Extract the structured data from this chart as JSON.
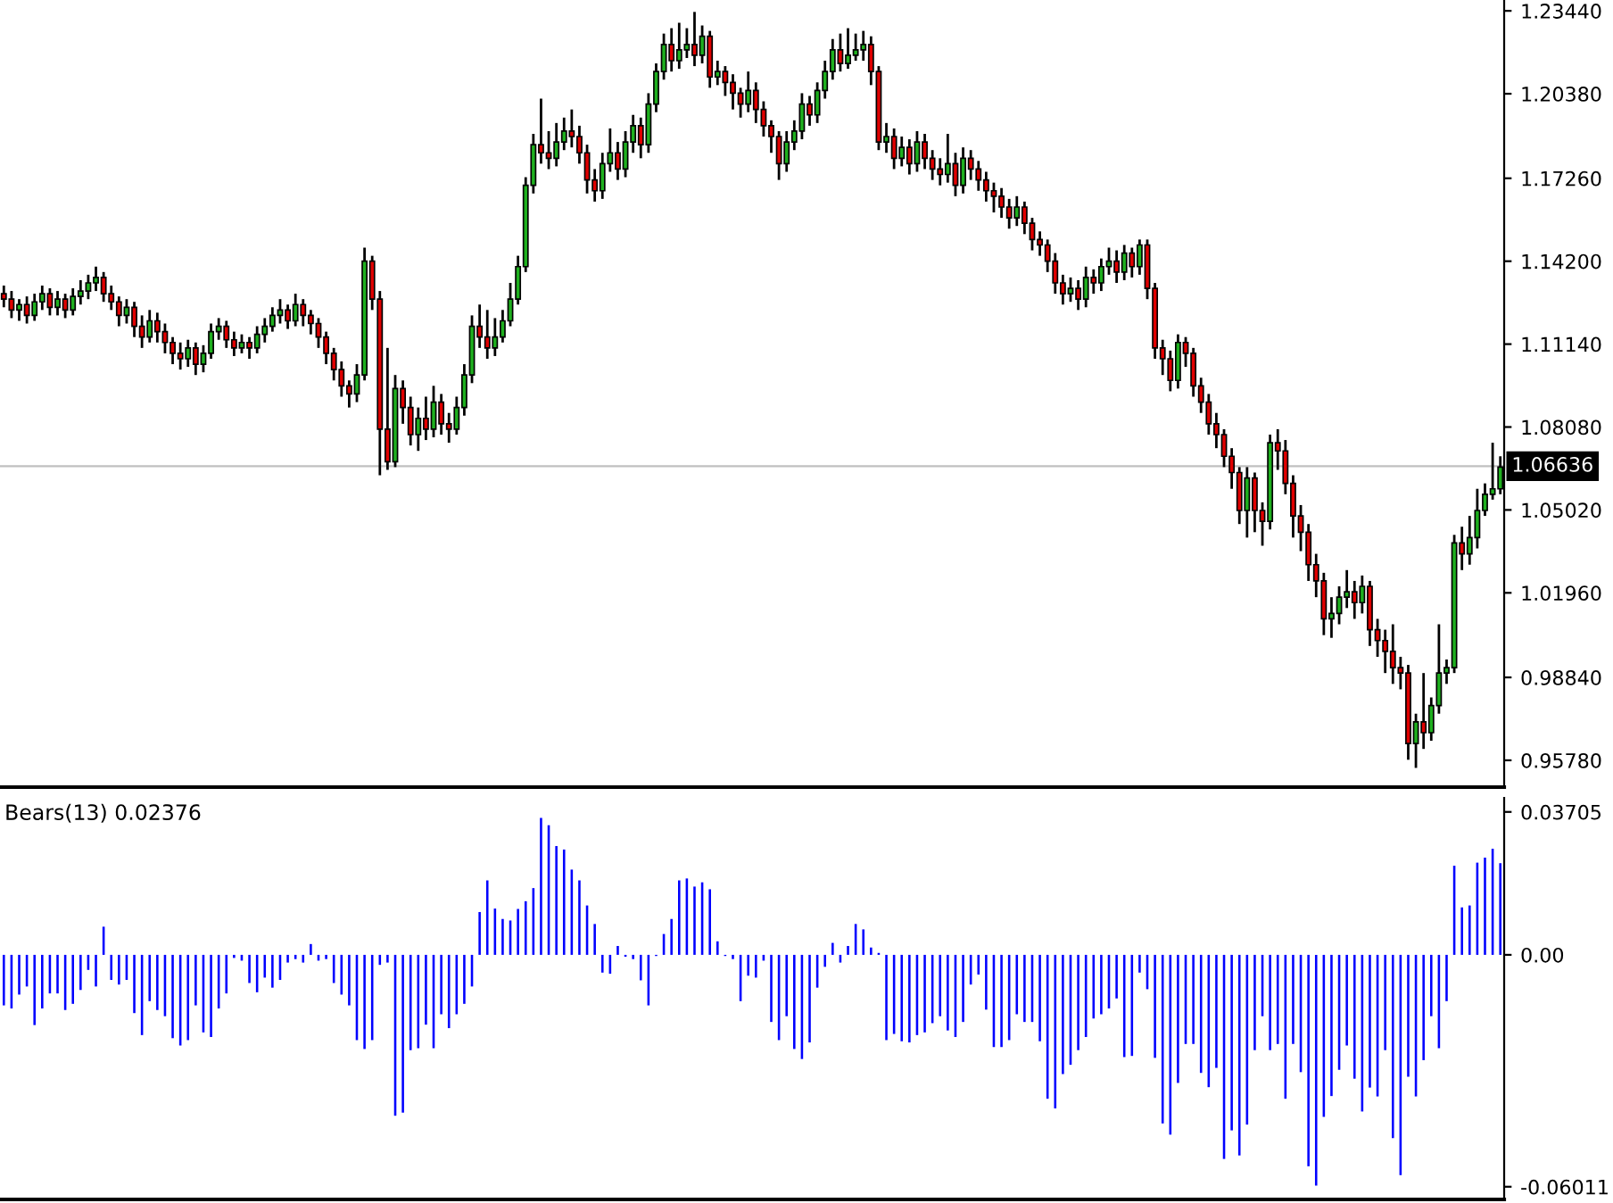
{
  "chart_data": [
    {
      "type": "candlestick",
      "categories": [
        null,
        null,
        null,
        null,
        null,
        null,
        null,
        null,
        null,
        null,
        null,
        null,
        null,
        null,
        null,
        null,
        null,
        null,
        null,
        null,
        null,
        null,
        null,
        null,
        null,
        null,
        null,
        null,
        null,
        null,
        null,
        null,
        null,
        null,
        null,
        null,
        null,
        null,
        null,
        null,
        null,
        null,
        null,
        null,
        null,
        null,
        null,
        null,
        null,
        null,
        null,
        null,
        null,
        null,
        null,
        null,
        null,
        null,
        null,
        null,
        null,
        null,
        null,
        null,
        null,
        null,
        null,
        null,
        null,
        null,
        null,
        null,
        null,
        null,
        null,
        null,
        null,
        null,
        null,
        null,
        null,
        null,
        null,
        null,
        null,
        null,
        null,
        null,
        null,
        null,
        null,
        null,
        null,
        null,
        null,
        null,
        null,
        null,
        null,
        null,
        null,
        null,
        null,
        null,
        null,
        null,
        null,
        null,
        null,
        null,
        null,
        null,
        null,
        null,
        null,
        null,
        null,
        null,
        null,
        null,
        null,
        null,
        null,
        null,
        null,
        null,
        null,
        null,
        null,
        null,
        null,
        null,
        null,
        null,
        null,
        null,
        null,
        null,
        null,
        null,
        null,
        null,
        null,
        null,
        null,
        null,
        null,
        null,
        null,
        null,
        null,
        null,
        null,
        null,
        null,
        null,
        null,
        null,
        null,
        null,
        null,
        null,
        null,
        null,
        null,
        null,
        null,
        null,
        null,
        null,
        null,
        null,
        null,
        null,
        null,
        null,
        null,
        null,
        null,
        null,
        null,
        null,
        null,
        null,
        null,
        null,
        null,
        null,
        null,
        null,
        null,
        null,
        null,
        null,
        null,
        null
      ],
      "ohlc": [
        [
          1.13,
          1.133,
          1.125,
          1.128
        ],
        [
          1.128,
          1.131,
          1.121,
          1.124
        ],
        [
          1.124,
          1.128,
          1.12,
          1.126
        ],
        [
          1.126,
          1.129,
          1.119,
          1.122
        ],
        [
          1.122,
          1.13,
          1.12,
          1.127
        ],
        [
          1.127,
          1.133,
          1.124,
          1.13
        ],
        [
          1.13,
          1.132,
          1.122,
          1.125
        ],
        [
          1.125,
          1.131,
          1.122,
          1.128
        ],
        [
          1.128,
          1.13,
          1.121,
          1.124
        ],
        [
          1.124,
          1.132,
          1.122,
          1.129
        ],
        [
          1.129,
          1.135,
          1.126,
          1.131
        ],
        [
          1.131,
          1.137,
          1.128,
          1.134
        ],
        [
          1.134,
          1.14,
          1.131,
          1.136
        ],
        [
          1.136,
          1.138,
          1.127,
          1.13
        ],
        [
          1.13,
          1.133,
          1.124,
          1.127
        ],
        [
          1.127,
          1.129,
          1.118,
          1.122
        ],
        [
          1.122,
          1.128,
          1.119,
          1.125
        ],
        [
          1.125,
          1.127,
          1.114,
          1.118
        ],
        [
          1.118,
          1.122,
          1.11,
          1.114
        ],
        [
          1.114,
          1.124,
          1.112,
          1.12
        ],
        [
          1.12,
          1.123,
          1.112,
          1.116
        ],
        [
          1.116,
          1.119,
          1.108,
          1.112
        ],
        [
          1.112,
          1.114,
          1.104,
          1.108
        ],
        [
          1.108,
          1.112,
          1.102,
          1.106
        ],
        [
          1.106,
          1.113,
          1.103,
          1.11
        ],
        [
          1.11,
          1.112,
          1.1,
          1.104
        ],
        [
          1.104,
          1.111,
          1.101,
          1.108
        ],
        [
          1.108,
          1.119,
          1.106,
          1.116
        ],
        [
          1.116,
          1.121,
          1.113,
          1.118
        ],
        [
          1.118,
          1.12,
          1.11,
          1.113
        ],
        [
          1.113,
          1.116,
          1.107,
          1.11
        ],
        [
          1.11,
          1.115,
          1.108,
          1.112
        ],
        [
          1.112,
          1.114,
          1.106,
          1.11
        ],
        [
          1.11,
          1.118,
          1.108,
          1.115
        ],
        [
          1.115,
          1.121,
          1.112,
          1.118
        ],
        [
          1.118,
          1.125,
          1.116,
          1.122
        ],
        [
          1.122,
          1.128,
          1.119,
          1.124
        ],
        [
          1.124,
          1.126,
          1.117,
          1.12
        ],
        [
          1.12,
          1.13,
          1.118,
          1.126
        ],
        [
          1.126,
          1.128,
          1.118,
          1.122
        ],
        [
          1.122,
          1.124,
          1.115,
          1.119
        ],
        [
          1.119,
          1.121,
          1.11,
          1.114
        ],
        [
          1.114,
          1.116,
          1.104,
          1.108
        ],
        [
          1.108,
          1.11,
          1.098,
          1.102
        ],
        [
          1.102,
          1.105,
          1.092,
          1.096
        ],
        [
          1.096,
          1.098,
          1.088,
          1.093
        ],
        [
          1.093,
          1.104,
          1.09,
          1.1
        ],
        [
          1.1,
          1.147,
          1.098,
          1.142
        ],
        [
          1.142,
          1.144,
          1.124,
          1.128
        ],
        [
          1.128,
          1.131,
          1.063,
          1.08
        ],
        [
          1.08,
          1.11,
          1.065,
          1.068
        ],
        [
          1.068,
          1.1,
          1.066,
          1.095
        ],
        [
          1.095,
          1.098,
          1.082,
          1.088
        ],
        [
          1.088,
          1.092,
          1.074,
          1.078
        ],
        [
          1.078,
          1.088,
          1.072,
          1.084
        ],
        [
          1.084,
          1.092,
          1.076,
          1.08
        ],
        [
          1.08,
          1.096,
          1.077,
          1.09
        ],
        [
          1.09,
          1.093,
          1.078,
          1.082
        ],
        [
          1.082,
          1.086,
          1.075,
          1.08
        ],
        [
          1.08,
          1.092,
          1.078,
          1.088
        ],
        [
          1.088,
          1.104,
          1.085,
          1.1
        ],
        [
          1.1,
          1.122,
          1.097,
          1.118
        ],
        [
          1.118,
          1.126,
          1.11,
          1.114
        ],
        [
          1.114,
          1.124,
          1.106,
          1.11
        ],
        [
          1.11,
          1.121,
          1.107,
          1.114
        ],
        [
          1.114,
          1.124,
          1.112,
          1.12
        ],
        [
          1.12,
          1.134,
          1.118,
          1.128
        ],
        [
          1.128,
          1.144,
          1.126,
          1.14
        ],
        [
          1.14,
          1.173,
          1.138,
          1.17
        ],
        [
          1.17,
          1.189,
          1.167,
          1.185
        ],
        [
          1.185,
          1.202,
          1.178,
          1.182
        ],
        [
          1.182,
          1.19,
          1.176,
          1.18
        ],
        [
          1.18,
          1.193,
          1.177,
          1.186
        ],
        [
          1.186,
          1.195,
          1.183,
          1.19
        ],
        [
          1.19,
          1.198,
          1.184,
          1.188
        ],
        [
          1.188,
          1.192,
          1.178,
          1.182
        ],
        [
          1.182,
          1.185,
          1.167,
          1.172
        ],
        [
          1.172,
          1.176,
          1.164,
          1.168
        ],
        [
          1.168,
          1.182,
          1.165,
          1.178
        ],
        [
          1.178,
          1.191,
          1.175,
          1.182
        ],
        [
          1.182,
          1.186,
          1.172,
          1.176
        ],
        [
          1.176,
          1.19,
          1.173,
          1.186
        ],
        [
          1.186,
          1.196,
          1.182,
          1.192
        ],
        [
          1.192,
          1.195,
          1.18,
          1.185
        ],
        [
          1.185,
          1.204,
          1.182,
          1.2
        ],
        [
          1.2,
          1.215,
          1.197,
          1.212
        ],
        [
          1.212,
          1.226,
          1.209,
          1.222
        ],
        [
          1.222,
          1.228,
          1.212,
          1.216
        ],
        [
          1.216,
          1.23,
          1.213,
          1.22
        ],
        [
          1.22,
          1.228,
          1.217,
          1.222
        ],
        [
          1.222,
          1.234,
          1.214,
          1.218
        ],
        [
          1.218,
          1.229,
          1.215,
          1.225
        ],
        [
          1.225,
          1.227,
          1.206,
          1.21
        ],
        [
          1.21,
          1.216,
          1.207,
          1.212
        ],
        [
          1.212,
          1.214,
          1.203,
          1.208
        ],
        [
          1.208,
          1.211,
          1.198,
          1.204
        ],
        [
          1.204,
          1.206,
          1.195,
          1.2
        ],
        [
          1.2,
          1.212,
          1.197,
          1.205
        ],
        [
          1.205,
          1.208,
          1.193,
          1.198
        ],
        [
          1.198,
          1.201,
          1.188,
          1.192
        ],
        [
          1.192,
          1.194,
          1.182,
          1.188
        ],
        [
          1.188,
          1.19,
          1.172,
          1.178
        ],
        [
          1.178,
          1.19,
          1.175,
          1.186
        ],
        [
          1.186,
          1.194,
          1.183,
          1.19
        ],
        [
          1.19,
          1.204,
          1.187,
          1.2
        ],
        [
          1.2,
          1.203,
          1.192,
          1.196
        ],
        [
          1.196,
          1.208,
          1.193,
          1.205
        ],
        [
          1.205,
          1.216,
          1.202,
          1.212
        ],
        [
          1.212,
          1.224,
          1.209,
          1.22
        ],
        [
          1.22,
          1.226,
          1.212,
          1.215
        ],
        [
          1.215,
          1.228,
          1.213,
          1.218
        ],
        [
          1.218,
          1.226,
          1.216,
          1.22
        ],
        [
          1.22,
          1.227,
          1.216,
          1.222
        ],
        [
          1.222,
          1.225,
          1.207,
          1.212
        ],
        [
          1.212,
          1.214,
          1.183,
          1.186
        ],
        [
          1.186,
          1.193,
          1.182,
          1.188
        ],
        [
          1.188,
          1.191,
          1.176,
          1.18
        ],
        [
          1.18,
          1.188,
          1.177,
          1.184
        ],
        [
          1.184,
          1.187,
          1.174,
          1.178
        ],
        [
          1.178,
          1.19,
          1.175,
          1.186
        ],
        [
          1.186,
          1.189,
          1.176,
          1.18
        ],
        [
          1.18,
          1.183,
          1.172,
          1.176
        ],
        [
          1.176,
          1.18,
          1.17,
          1.174
        ],
        [
          1.174,
          1.189,
          1.171,
          1.178
        ],
        [
          1.178,
          1.182,
          1.166,
          1.17
        ],
        [
          1.17,
          1.184,
          1.167,
          1.18
        ],
        [
          1.18,
          1.183,
          1.172,
          1.176
        ],
        [
          1.176,
          1.179,
          1.168,
          1.172
        ],
        [
          1.172,
          1.175,
          1.164,
          1.168
        ],
        [
          1.168,
          1.171,
          1.16,
          1.166
        ],
        [
          1.166,
          1.169,
          1.158,
          1.162
        ],
        [
          1.162,
          1.165,
          1.154,
          1.158
        ],
        [
          1.158,
          1.166,
          1.155,
          1.162
        ],
        [
          1.162,
          1.164,
          1.152,
          1.156
        ],
        [
          1.156,
          1.158,
          1.146,
          1.15
        ],
        [
          1.15,
          1.153,
          1.144,
          1.148
        ],
        [
          1.148,
          1.15,
          1.138,
          1.142
        ],
        [
          1.142,
          1.145,
          1.13,
          1.134
        ],
        [
          1.134,
          1.137,
          1.126,
          1.13
        ],
        [
          1.13,
          1.136,
          1.127,
          1.132
        ],
        [
          1.132,
          1.135,
          1.124,
          1.128
        ],
        [
          1.128,
          1.14,
          1.125,
          1.136
        ],
        [
          1.136,
          1.139,
          1.13,
          1.134
        ],
        [
          1.134,
          1.143,
          1.131,
          1.14
        ],
        [
          1.14,
          1.147,
          1.137,
          1.142
        ],
        [
          1.142,
          1.146,
          1.134,
          1.138
        ],
        [
          1.138,
          1.148,
          1.135,
          1.145
        ],
        [
          1.145,
          1.147,
          1.136,
          1.14
        ],
        [
          1.14,
          1.15,
          1.137,
          1.148
        ],
        [
          1.148,
          1.15,
          1.128,
          1.132
        ],
        [
          1.132,
          1.134,
          1.106,
          1.11
        ],
        [
          1.11,
          1.113,
          1.1,
          1.106
        ],
        [
          1.106,
          1.109,
          1.094,
          1.098
        ],
        [
          1.098,
          1.115,
          1.095,
          1.112
        ],
        [
          1.112,
          1.114,
          1.103,
          1.108
        ],
        [
          1.108,
          1.11,
          1.092,
          1.096
        ],
        [
          1.096,
          1.099,
          1.086,
          1.09
        ],
        [
          1.09,
          1.093,
          1.078,
          1.082
        ],
        [
          1.082,
          1.086,
          1.073,
          1.078
        ],
        [
          1.078,
          1.08,
          1.066,
          1.07
        ],
        [
          1.07,
          1.073,
          1.058,
          1.064
        ],
        [
          1.064,
          1.066,
          1.045,
          1.05
        ],
        [
          1.05,
          1.066,
          1.04,
          1.062
        ],
        [
          1.062,
          1.064,
          1.042,
          1.05
        ],
        [
          1.05,
          1.053,
          1.037,
          1.046
        ],
        [
          1.046,
          1.078,
          1.043,
          1.075
        ],
        [
          1.075,
          1.08,
          1.065,
          1.072
        ],
        [
          1.072,
          1.076,
          1.056,
          1.06
        ],
        [
          1.06,
          1.063,
          1.04,
          1.048
        ],
        [
          1.048,
          1.052,
          1.035,
          1.042
        ],
        [
          1.042,
          1.045,
          1.024,
          1.03
        ],
        [
          1.03,
          1.034,
          1.018,
          1.024
        ],
        [
          1.024,
          1.027,
          1.004,
          1.01
        ],
        [
          1.01,
          1.018,
          1.003,
          1.012
        ],
        [
          1.012,
          1.022,
          1.008,
          1.018
        ],
        [
          1.018,
          1.028,
          1.014,
          1.02
        ],
        [
          1.02,
          1.024,
          1.01,
          1.016
        ],
        [
          1.016,
          1.026,
          1.012,
          1.022
        ],
        [
          1.022,
          1.024,
          1.0,
          1.006
        ],
        [
          1.006,
          1.01,
          0.996,
          1.002
        ],
        [
          1.002,
          1.006,
          0.99,
          0.998
        ],
        [
          0.998,
          1.008,
          0.986,
          0.992
        ],
        [
          0.992,
          0.996,
          0.984,
          0.99
        ],
        [
          0.99,
          0.993,
          0.958,
          0.964
        ],
        [
          0.964,
          0.975,
          0.955,
          0.972
        ],
        [
          0.972,
          0.99,
          0.962,
          0.968
        ],
        [
          0.968,
          0.981,
          0.965,
          0.978
        ],
        [
          0.978,
          1.008,
          0.975,
          0.99
        ],
        [
          0.99,
          0.995,
          0.986,
          0.992
        ],
        [
          0.992,
          1.041,
          0.99,
          1.038
        ],
        [
          1.038,
          1.044,
          1.028,
          1.034
        ],
        [
          1.034,
          1.048,
          1.03,
          1.04
        ],
        [
          1.04,
          1.058,
          1.036,
          1.05
        ],
        [
          1.05,
          1.06,
          1.048,
          1.056
        ],
        [
          1.056,
          1.075,
          1.054,
          1.058
        ],
        [
          1.058,
          1.07,
          1.056,
          1.066
        ]
      ],
      "colors": [
        "#e00000",
        "#e00000",
        "#1fb01f",
        "#e00000",
        "#1fb01f",
        "#1fb01f",
        "#e00000",
        "#1fb01f",
        "#e00000",
        "#1fb01f",
        "#1fb01f",
        "#1fb01f",
        "#1fb01f",
        "#e00000",
        "#e00000",
        "#e00000",
        "#1fb01f",
        "#e00000",
        "#e00000",
        "#1fb01f",
        "#e00000",
        "#e00000",
        "#e00000",
        "#e00000",
        "#1fb01f",
        "#e00000",
        "#1fb01f",
        "#1fb01f",
        "#1fb01f",
        "#e00000",
        "#e00000",
        "#1fb01f",
        "#e00000",
        "#1fb01f",
        "#1fb01f",
        "#1fb01f",
        "#1fb01f",
        "#e00000",
        "#1fb01f",
        "#e00000",
        "#e00000",
        "#e00000",
        "#e00000",
        "#e00000",
        "#e00000",
        "#e00000",
        "#1fb01f",
        "#1fb01f",
        "#e00000",
        "#e00000",
        "#e00000",
        "#1fb01f",
        "#e00000",
        "#e00000",
        "#1fb01f",
        "#e00000",
        "#1fb01f",
        "#e00000",
        "#e00000",
        "#1fb01f",
        "#1fb01f",
        "#1fb01f",
        "#e00000",
        "#e00000",
        "#1fb01f",
        "#1fb01f",
        "#1fb01f",
        "#1fb01f",
        "#1fb01f",
        "#1fb01f",
        "#e00000",
        "#e00000",
        "#1fb01f",
        "#1fb01f",
        "#e00000",
        "#e00000",
        "#e00000",
        "#e00000",
        "#1fb01f",
        "#1fb01f",
        "#e00000",
        "#1fb01f",
        "#1fb01f",
        "#e00000",
        "#1fb01f",
        "#1fb01f",
        "#1fb01f",
        "#e00000",
        "#1fb01f",
        "#1fb01f",
        "#e00000",
        "#1fb01f",
        "#e00000",
        "#1fb01f",
        "#e00000",
        "#e00000",
        "#e00000",
        "#1fb01f",
        "#e00000",
        "#e00000",
        "#e00000",
        "#e00000",
        "#1fb01f",
        "#1fb01f",
        "#1fb01f",
        "#e00000",
        "#1fb01f",
        "#1fb01f",
        "#1fb01f",
        "#e00000",
        "#1fb01f",
        "#1fb01f",
        "#1fb01f",
        "#e00000",
        "#e00000",
        "#1fb01f",
        "#e00000",
        "#1fb01f",
        "#e00000",
        "#1fb01f",
        "#e00000",
        "#e00000",
        "#e00000",
        "#1fb01f",
        "#e00000",
        "#1fb01f",
        "#e00000",
        "#e00000",
        "#e00000",
        "#e00000",
        "#e00000",
        "#e00000",
        "#1fb01f",
        "#e00000",
        "#e00000",
        "#e00000",
        "#e00000",
        "#e00000",
        "#e00000",
        "#1fb01f",
        "#e00000",
        "#1fb01f",
        "#e00000",
        "#1fb01f",
        "#1fb01f",
        "#e00000",
        "#1fb01f",
        "#e00000",
        "#1fb01f",
        "#e00000",
        "#e00000",
        "#e00000",
        "#e00000",
        "#1fb01f",
        "#e00000",
        "#e00000",
        "#e00000",
        "#e00000",
        "#e00000",
        "#e00000",
        "#e00000",
        "#e00000",
        "#1fb01f",
        "#e00000",
        "#e00000",
        "#1fb01f",
        "#e00000",
        "#e00000",
        "#e00000",
        "#e00000",
        "#e00000",
        "#e00000",
        "#e00000",
        "#1fb01f",
        "#1fb01f",
        "#1fb01f",
        "#e00000",
        "#1fb01f",
        "#e00000",
        "#e00000",
        "#e00000",
        "#e00000",
        "#e00000",
        "#e00000",
        "#1fb01f",
        "#e00000",
        "#1fb01f",
        "#1fb01f",
        "#1fb01f",
        "#1fb01f",
        "#e00000",
        "#1fb01f",
        "#1fb01f",
        "#1fb01f",
        "#1fb01f",
        "#1fb01f"
      ],
      "ylim": [
        0.9479,
        1.2384
      ],
      "yticks": [
        {
          "value": 1.2344,
          "label": "1.23440"
        },
        {
          "value": 1.2038,
          "label": "1.20380"
        },
        {
          "value": 1.1726,
          "label": "1.17260"
        },
        {
          "value": 1.142,
          "label": "1.14200"
        },
        {
          "value": 1.1114,
          "label": "1.11140"
        },
        {
          "value": 1.0808,
          "label": "1.08080"
        },
        {
          "value": 1.0502,
          "label": "1.05020"
        },
        {
          "value": 1.0196,
          "label": "1.01960"
        },
        {
          "value": 0.9884,
          "label": "0.98840"
        },
        {
          "value": 0.9578,
          "label": "0.95780"
        }
      ],
      "ref_lines": [
        {
          "axis": "y",
          "value": 1.06636,
          "label": "1.06636",
          "color": "#c0c0c0"
        }
      ],
      "tick_labels": "y",
      "grid": false,
      "legend": false
    },
    {
      "type": "bar",
      "title": "Bears(13) 0.02376",
      "color": "#0000ff",
      "categories": [
        null,
        null,
        null,
        null,
        null,
        null,
        null,
        null,
        null,
        null,
        null,
        null,
        null,
        null,
        null,
        null,
        null,
        null,
        null,
        null,
        null,
        null,
        null,
        null,
        null,
        null,
        null,
        null,
        null,
        null,
        null,
        null,
        null,
        null,
        null,
        null,
        null,
        null,
        null,
        null,
        null,
        null,
        null,
        null,
        null,
        null,
        null,
        null,
        null,
        null,
        null,
        null,
        null,
        null,
        null,
        null,
        null,
        null,
        null,
        null,
        null,
        null,
        null,
        null,
        null,
        null,
        null,
        null,
        null,
        null,
        null,
        null,
        null,
        null,
        null,
        null,
        null,
        null,
        null,
        null,
        null,
        null,
        null,
        null,
        null,
        null,
        null,
        null,
        null,
        null,
        null,
        null,
        null,
        null,
        null,
        null,
        null,
        null,
        null,
        null,
        null,
        null,
        null,
        null,
        null,
        null,
        null,
        null,
        null,
        null,
        null,
        null,
        null,
        null,
        null,
        null,
        null,
        null,
        null,
        null,
        null,
        null,
        null,
        null,
        null,
        null,
        null,
        null,
        null,
        null,
        null,
        null,
        null,
        null,
        null,
        null,
        null,
        null,
        null,
        null,
        null,
        null,
        null,
        null,
        null,
        null,
        null,
        null,
        null,
        null,
        null,
        null,
        null,
        null,
        null,
        null,
        null,
        null,
        null,
        null,
        null,
        null,
        null,
        null,
        null,
        null,
        null,
        null,
        null,
        null,
        null,
        null,
        null,
        null,
        null,
        null,
        null,
        null,
        null,
        null,
        null,
        null,
        null,
        null,
        null,
        null,
        null,
        null,
        null,
        null,
        null,
        null,
        null,
        null,
        null,
        null
      ],
      "values": [
        -0.0131,
        -0.0139,
        -0.0103,
        -0.0082,
        -0.0182,
        -0.0139,
        -0.01,
        -0.01,
        -0.0143,
        -0.0127,
        -0.0091,
        -0.0039,
        -0.0082,
        0.0073,
        -0.0065,
        -0.0077,
        -0.0065,
        -0.0151,
        -0.0208,
        -0.012,
        -0.0143,
        -0.0159,
        -0.0216,
        -0.0235,
        -0.0221,
        -0.0131,
        -0.0201,
        -0.0213,
        -0.0139,
        -0.01,
        -0.0008,
        -0.0015,
        -0.0073,
        -0.0097,
        -0.0059,
        -0.0085,
        -0.0065,
        -0.002,
        -0.0011,
        -0.002,
        0.0028,
        -0.0015,
        -0.0011,
        -0.0073,
        -0.0103,
        -0.0131,
        -0.0221,
        -0.0244,
        -0.0221,
        -0.0026,
        -0.002,
        -0.0417,
        -0.0409,
        -0.0247,
        -0.0242,
        -0.0181,
        -0.0242,
        -0.0154,
        -0.019,
        -0.0154,
        -0.0127,
        -0.0082,
        0.0111,
        0.0193,
        0.012,
        0.0093,
        0.0089,
        0.0119,
        0.0139,
        0.0173,
        0.0355,
        0.0336,
        0.0282,
        0.0273,
        0.0221,
        0.0193,
        0.0128,
        0.008,
        -0.0046,
        -0.0049,
        0.0023,
        -0.0005,
        -0.0011,
        -0.0066,
        -0.0131,
        -0.0003,
        0.0054,
        0.0093,
        0.0193,
        0.0198,
        0.0177,
        0.0188,
        0.017,
        0.0035,
        -0.0003,
        -0.0011,
        -0.012,
        -0.0054,
        -0.0059,
        -0.0015,
        -0.0174,
        -0.0221,
        -0.0159,
        -0.0244,
        -0.027,
        -0.0227,
        -0.0085,
        -0.0031,
        0.0031,
        -0.002,
        0.0023,
        0.008,
        0.0066,
        0.0019,
        0.0005,
        -0.0221,
        -0.0205,
        -0.0224,
        -0.0227,
        -0.0208,
        -0.0201,
        -0.0177,
        -0.0159,
        -0.0196,
        -0.0213,
        -0.0174,
        -0.0077,
        -0.0051,
        -0.0142,
        -0.0239,
        -0.0239,
        -0.0221,
        -0.0154,
        -0.0174,
        -0.0174,
        -0.0224,
        -0.0373,
        -0.0398,
        -0.0309,
        -0.0285,
        -0.0247,
        -0.0213,
        -0.0165,
        -0.0154,
        -0.0139,
        -0.0113,
        -0.0265,
        -0.0262,
        -0.0046,
        -0.0089,
        -0.0267,
        -0.0437,
        -0.0466,
        -0.0332,
        -0.0231,
        -0.0231,
        -0.0306,
        -0.0343,
        -0.0293,
        -0.0529,
        -0.0455,
        -0.052,
        -0.044,
        -0.0247,
        -0.0159,
        -0.0247,
        -0.0231,
        -0.0373,
        -0.0231,
        -0.0304,
        -0.0548,
        -0.0598,
        -0.042,
        -0.0366,
        -0.0298,
        -0.0235,
        -0.0321,
        -0.0406,
        -0.0344,
        -0.0367,
        -0.0247,
        -0.0475,
        -0.0571,
        -0.0316,
        -0.0367,
        -0.0273,
        -0.0159,
        -0.0242,
        -0.012,
        0.0231,
        0.0123,
        0.0128,
        0.0239,
        0.0252,
        0.0275,
        0.02376
      ],
      "ylim": [
        -0.0634,
        0.0407
      ],
      "yticks": [
        {
          "value": 0.03705,
          "label": "0.03705"
        },
        {
          "value": 0,
          "label": "0.00"
        },
        {
          "value": -0.06011,
          "label": "-0.06011"
        }
      ],
      "tick_labels": "y",
      "grid": false,
      "legend": false
    }
  ]
}
